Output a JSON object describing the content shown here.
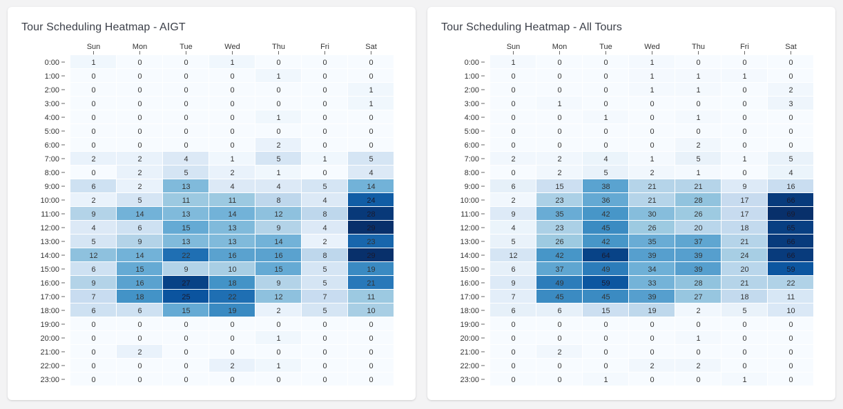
{
  "colors": {
    "scale_low": "#f7fbff",
    "scale_high": "#08306b",
    "text_dark": "#333333",
    "text_light": "#ffffff",
    "page_bg": "#f3f3f4"
  },
  "chart_data": [
    {
      "type": "heatmap",
      "title": "Tour Scheduling Heatmap - AIGT",
      "x_categories": [
        "Sun",
        "Mon",
        "Tue",
        "Wed",
        "Thu",
        "Fri",
        "Sat"
      ],
      "y_categories": [
        "0:00",
        "1:00",
        "2:00",
        "3:00",
        "4:00",
        "5:00",
        "6:00",
        "7:00",
        "8:00",
        "9:00",
        "10:00",
        "11:00",
        "12:00",
        "13:00",
        "14:00",
        "15:00",
        "16:00",
        "17:00",
        "18:00",
        "19:00",
        "20:00",
        "21:00",
        "22:00",
        "23:00"
      ],
      "values": [
        [
          1,
          0,
          0,
          1,
          0,
          0,
          0
        ],
        [
          0,
          0,
          0,
          0,
          1,
          0,
          0
        ],
        [
          0,
          0,
          0,
          0,
          0,
          0,
          1
        ],
        [
          0,
          0,
          0,
          0,
          0,
          0,
          1
        ],
        [
          0,
          0,
          0,
          0,
          1,
          0,
          0
        ],
        [
          0,
          0,
          0,
          0,
          0,
          0,
          0
        ],
        [
          0,
          0,
          0,
          0,
          2,
          0,
          0
        ],
        [
          2,
          2,
          4,
          1,
          5,
          1,
          5
        ],
        [
          0,
          2,
          5,
          2,
          1,
          0,
          4
        ],
        [
          6,
          2,
          13,
          4,
          4,
          5,
          14
        ],
        [
          2,
          5,
          11,
          11,
          8,
          4,
          24
        ],
        [
          9,
          14,
          13,
          14,
          12,
          8,
          28
        ],
        [
          4,
          6,
          15,
          13,
          9,
          4,
          29
        ],
        [
          5,
          9,
          13,
          13,
          14,
          2,
          23
        ],
        [
          12,
          14,
          22,
          16,
          16,
          8,
          29
        ],
        [
          6,
          15,
          9,
          10,
          15,
          5,
          19
        ],
        [
          9,
          16,
          27,
          18,
          9,
          5,
          21
        ],
        [
          7,
          18,
          25,
          22,
          12,
          7,
          11
        ],
        [
          6,
          6,
          15,
          19,
          2,
          5,
          10
        ],
        [
          0,
          0,
          0,
          0,
          0,
          0,
          0
        ],
        [
          0,
          0,
          0,
          0,
          1,
          0,
          0
        ],
        [
          0,
          2,
          0,
          0,
          0,
          0,
          0
        ],
        [
          0,
          0,
          0,
          2,
          1,
          0,
          0
        ],
        [
          0,
          0,
          0,
          0,
          0,
          0,
          0
        ]
      ],
      "vmin": 0,
      "vmax": 29
    },
    {
      "type": "heatmap",
      "title": "Tour Scheduling Heatmap - All Tours",
      "x_categories": [
        "Sun",
        "Mon",
        "Tue",
        "Wed",
        "Thu",
        "Fri",
        "Sat"
      ],
      "y_categories": [
        "0:00",
        "1:00",
        "2:00",
        "3:00",
        "4:00",
        "5:00",
        "6:00",
        "7:00",
        "8:00",
        "9:00",
        "10:00",
        "11:00",
        "12:00",
        "13:00",
        "14:00",
        "15:00",
        "16:00",
        "17:00",
        "18:00",
        "19:00",
        "20:00",
        "21:00",
        "22:00",
        "23:00"
      ],
      "values": [
        [
          1,
          0,
          0,
          1,
          0,
          0,
          0
        ],
        [
          0,
          0,
          0,
          1,
          1,
          1,
          0
        ],
        [
          0,
          0,
          0,
          1,
          1,
          0,
          2
        ],
        [
          0,
          1,
          0,
          0,
          0,
          0,
          3
        ],
        [
          0,
          0,
          1,
          0,
          1,
          0,
          0
        ],
        [
          0,
          0,
          0,
          0,
          0,
          0,
          0
        ],
        [
          0,
          0,
          0,
          0,
          2,
          0,
          0
        ],
        [
          2,
          2,
          4,
          1,
          5,
          1,
          5
        ],
        [
          0,
          2,
          5,
          2,
          1,
          0,
          4
        ],
        [
          6,
          15,
          38,
          21,
          21,
          9,
          16
        ],
        [
          2,
          23,
          36,
          21,
          28,
          17,
          66
        ],
        [
          9,
          35,
          42,
          30,
          26,
          17,
          69
        ],
        [
          4,
          23,
          45,
          26,
          20,
          18,
          65
        ],
        [
          5,
          26,
          42,
          35,
          37,
          21,
          66
        ],
        [
          12,
          42,
          64,
          39,
          39,
          24,
          66
        ],
        [
          6,
          37,
          49,
          34,
          39,
          20,
          59
        ],
        [
          9,
          49,
          59,
          33,
          28,
          21,
          22
        ],
        [
          7,
          45,
          45,
          39,
          27,
          18,
          11
        ],
        [
          6,
          6,
          15,
          19,
          2,
          5,
          10
        ],
        [
          0,
          0,
          0,
          0,
          0,
          0,
          0
        ],
        [
          0,
          0,
          0,
          0,
          1,
          0,
          0
        ],
        [
          0,
          2,
          0,
          0,
          0,
          0,
          0
        ],
        [
          0,
          0,
          0,
          2,
          2,
          0,
          0
        ],
        [
          0,
          0,
          1,
          0,
          0,
          1,
          0
        ]
      ],
      "vmin": 0,
      "vmax": 69
    }
  ]
}
